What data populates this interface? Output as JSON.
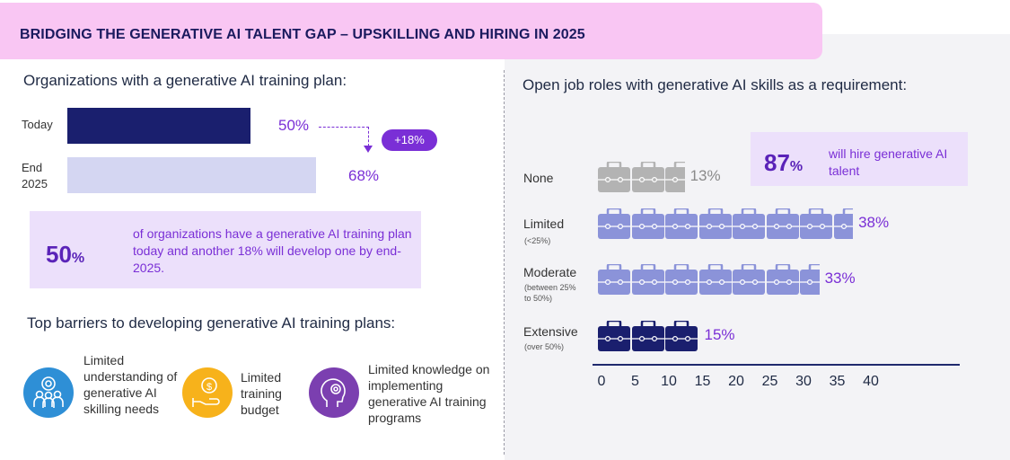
{
  "header": {
    "title": "BRIDGING THE GENERATIVE AI TALENT GAP – UPSKILLING AND HIRING IN 2025"
  },
  "left": {
    "training_title": "Organizations with a generative AI training plan:",
    "change_label": "+18%",
    "callout": {
      "big_number": "50",
      "big_unit": "%",
      "text": "of organizations have a generative AI training plan today and another 18% will develop one by end-2025."
    },
    "barriers_title": "Top barriers to developing generative AI training plans:",
    "barriers": [
      {
        "icon": "people-gear-icon",
        "color": "#2e8fd6",
        "label": "Limited understanding of generative AI skilling needs"
      },
      {
        "icon": "money-hand-icon",
        "color": "#f7b21b",
        "label": "Limited training budget"
      },
      {
        "icon": "head-gear-icon",
        "color": "#7b3fb0",
        "label": "Limited knowledge on implementing generative AI training programs"
      }
    ]
  },
  "right": {
    "title": "Open job roles with generative AI skills as a requirement:",
    "hire": {
      "big_number": "87",
      "big_unit": "%",
      "text": "will hire generative AI talent"
    }
  },
  "colors": {
    "navy": "#1a1f6e",
    "lavender": "#d4d6f2",
    "purple": "#7a2fd6",
    "grey_case": "#b3b3b3",
    "light_case": "#8b93d9",
    "dark_case": "#1a1f6e"
  },
  "chart_data": [
    {
      "type": "bar",
      "orientation": "horizontal",
      "categories": [
        "Today",
        "End\n2025"
      ],
      "category_lines": [
        [
          "Today"
        ],
        [
          "End",
          "2025"
        ]
      ],
      "values": [
        50,
        68
      ],
      "value_labels": [
        "50%",
        "68%"
      ],
      "xlim": [
        0,
        100
      ]
    },
    {
      "type": "bar",
      "orientation": "horizontal",
      "style": "pictograph-briefcase",
      "categories": [
        "None",
        "Limited",
        "Moderate",
        "Extensive"
      ],
      "category_notes": [
        "",
        "(<25%)",
        "(between 25%\nto 50%)",
        "(over 50%)"
      ],
      "values": [
        13,
        38,
        33,
        15
      ],
      "value_labels": [
        "13%",
        "38%",
        "33%",
        "15%"
      ],
      "units_per_icon": 5,
      "x_ticks": [
        "0",
        "5",
        "10",
        "15",
        "20",
        "25",
        "30",
        "35",
        "40"
      ],
      "xlim": [
        0,
        40
      ]
    }
  ]
}
